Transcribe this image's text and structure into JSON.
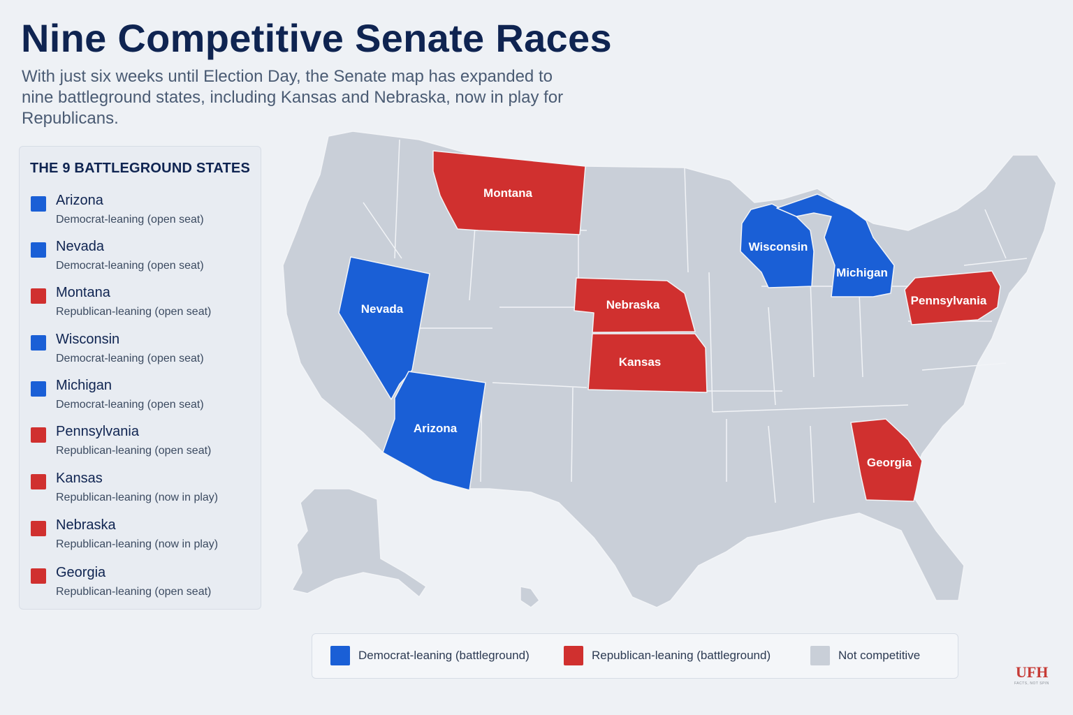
{
  "header": {
    "title": "Nine Competitive Senate Races",
    "subtitle": "With just six weeks until Election Day, the Senate map has expanded to nine battleground states, including Kansas and Nebraska, now in play for Republicans."
  },
  "sidebar": {
    "heading": "THE 9 BATTLEGROUND STATES",
    "items": [
      {
        "name": "Arizona",
        "status": "Democrat-leaning (open seat)",
        "party": "dem"
      },
      {
        "name": "Nevada",
        "status": "Democrat-leaning (open seat)",
        "party": "dem"
      },
      {
        "name": "Montana",
        "status": "Republican-leaning (open seat)",
        "party": "rep"
      },
      {
        "name": "Wisconsin",
        "status": "Democrat-leaning (open seat)",
        "party": "dem"
      },
      {
        "name": "Michigan",
        "status": "Democrat-leaning (open seat)",
        "party": "dem"
      },
      {
        "name": "Pennsylvania",
        "status": "Republican-leaning (open seat)",
        "party": "rep"
      },
      {
        "name": "Kansas",
        "status": "Republican-leaning (now in play)",
        "party": "rep"
      },
      {
        "name": "Nebraska",
        "status": "Republican-leaning (now in play)",
        "party": "rep"
      },
      {
        "name": "Georgia",
        "status": "Republican-leaning (open seat)",
        "party": "rep"
      }
    ]
  },
  "map": {
    "labels": {
      "montana": "Montana",
      "nevada": "Nevada",
      "arizona": "Arizona",
      "nebraska": "Nebraska",
      "kansas": "Kansas",
      "wisconsin": "Wisconsin",
      "michigan": "Michigan",
      "pennsylvania": "Pennsylvania",
      "georgia": "Georgia"
    }
  },
  "legend": {
    "dem_label": "Democrat-leaning (battleground)",
    "rep_label": "Republican-leaning (battleground)",
    "none_label": "Not competitive"
  },
  "colors": {
    "dem": "#1a5fd6",
    "rep": "#d0302f",
    "none": "#c9cfd8",
    "border": "#f2f4f7"
  },
  "logo": {
    "text": "UFH",
    "tagline": "FACTS, NOT SPIN"
  }
}
